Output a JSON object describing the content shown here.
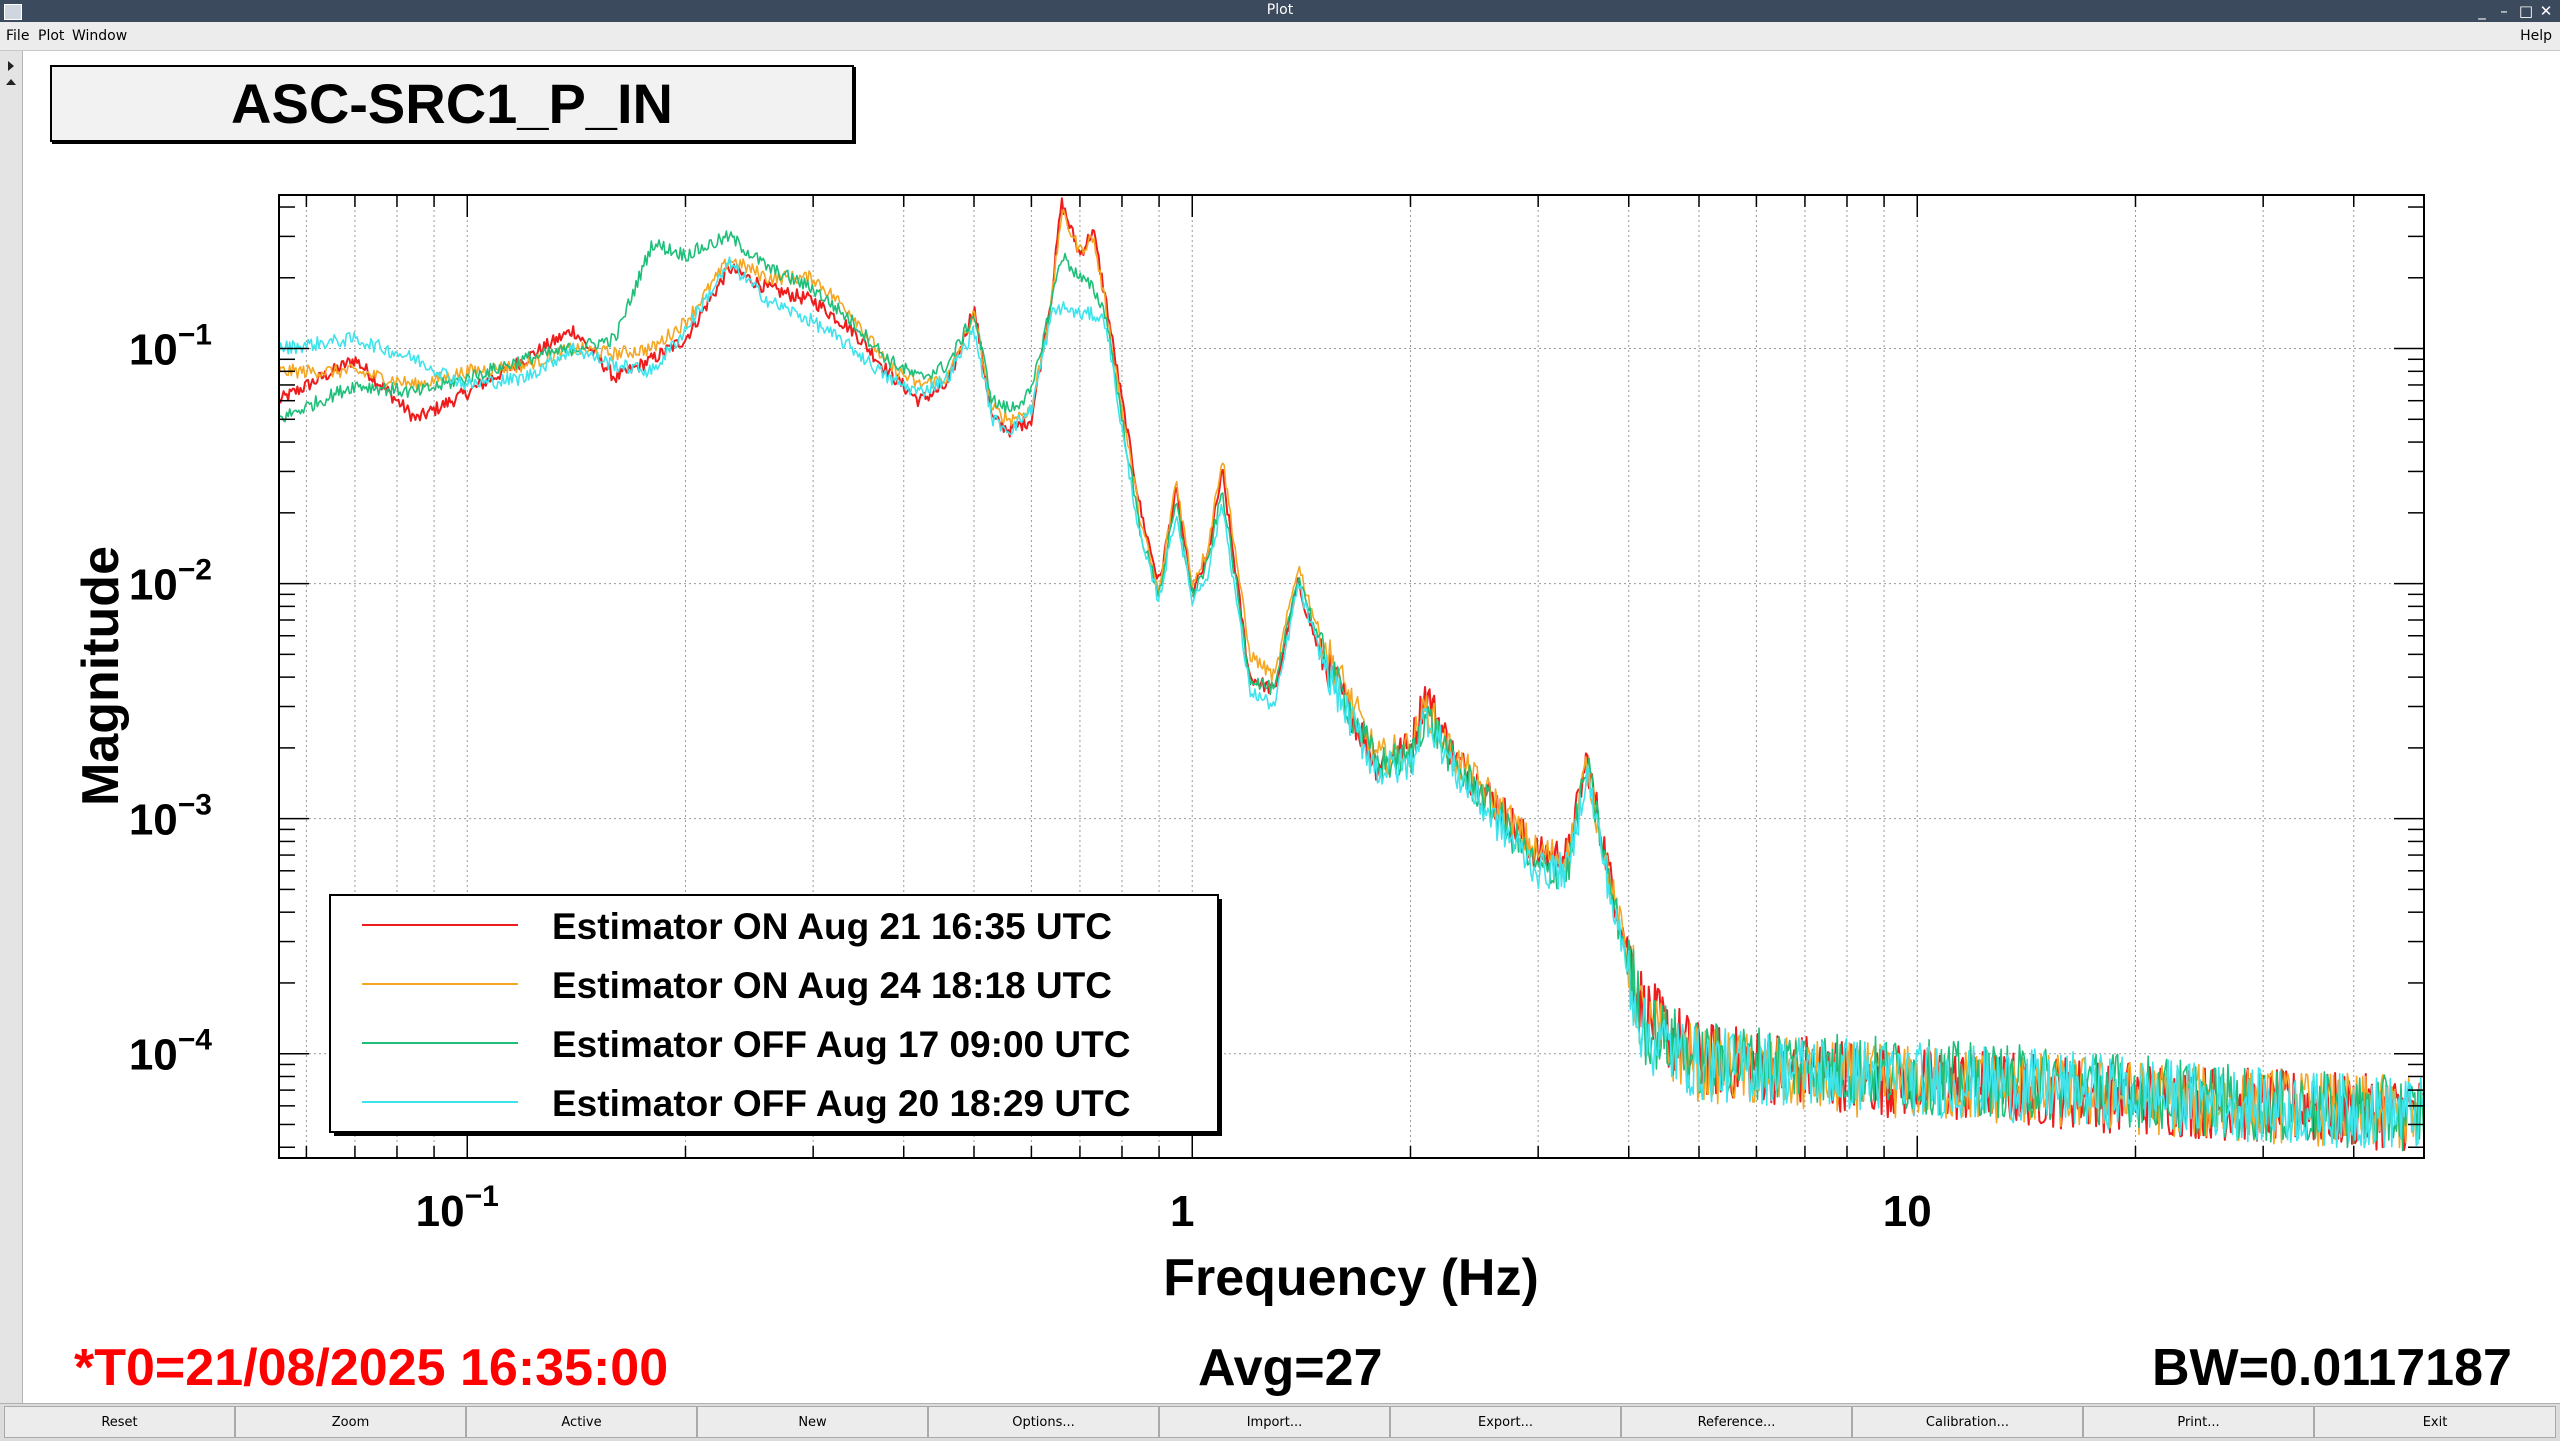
{
  "window": {
    "title": "Plot",
    "controls": [
      "_",
      "–",
      "□",
      "✕"
    ]
  },
  "menu": {
    "items": [
      "File",
      "Plot",
      "Window"
    ],
    "help": "Help"
  },
  "plot_title": "ASC-SRC1_P_IN",
  "footer": {
    "t0": "*T0=21/08/2025 16:35:00",
    "avg": "Avg=27",
    "bw": "BW=0.0117187"
  },
  "colors": {
    "t0": "#ff0000",
    "frame": "#000000",
    "grid": "#9a9a9a"
  },
  "buttons": [
    "Reset",
    "Zoom",
    "Active",
    "New",
    "Options...",
    "Import...",
    "Export...",
    "Reference...",
    "Calibration...",
    "Print...",
    "Exit"
  ],
  "chart_data": {
    "type": "line",
    "xlabel": "Frequency (Hz)",
    "ylabel": "Magnitude",
    "x_scale": "log",
    "y_scale": "log",
    "xlim": [
      0.055,
      50
    ],
    "ylim": [
      3.6e-05,
      0.45
    ],
    "x_tick_labels": [
      {
        "value": 0.1,
        "base": "10",
        "exp": "−1"
      },
      {
        "value": 1,
        "base": "1",
        "exp": ""
      },
      {
        "value": 10,
        "base": "10",
        "exp": ""
      }
    ],
    "y_tick_labels": [
      {
        "value": 0.1,
        "base": "10",
        "exp": "−1"
      },
      {
        "value": 0.01,
        "base": "10",
        "exp": "−2"
      },
      {
        "value": 0.001,
        "base": "10",
        "exp": "−3"
      },
      {
        "value": 0.0001,
        "base": "10",
        "exp": "−4"
      }
    ],
    "grid": true,
    "legend_position": "bottom-left",
    "x": [
      0.055,
      0.07,
      0.085,
      0.1,
      0.12,
      0.14,
      0.16,
      0.18,
      0.2,
      0.23,
      0.26,
      0.3,
      0.34,
      0.38,
      0.42,
      0.46,
      0.5,
      0.53,
      0.56,
      0.6,
      0.64,
      0.66,
      0.7,
      0.73,
      0.76,
      0.8,
      0.85,
      0.9,
      0.95,
      1.0,
      1.05,
      1.1,
      1.2,
      1.3,
      1.4,
      1.5,
      1.6,
      1.8,
      2.0,
      2.1,
      2.3,
      2.6,
      3.0,
      3.3,
      3.5,
      3.8,
      4.2,
      5,
      7,
      10,
      15,
      20,
      30,
      50
    ],
    "series": [
      {
        "name": "Estimator ON Aug 21 16:35 UTC",
        "color": "#ee1c1c",
        "values": [
          0.06,
          0.09,
          0.05,
          0.065,
          0.09,
          0.12,
          0.075,
          0.09,
          0.11,
          0.22,
          0.18,
          0.16,
          0.12,
          0.08,
          0.06,
          0.07,
          0.15,
          0.05,
          0.045,
          0.05,
          0.17,
          0.42,
          0.25,
          0.32,
          0.16,
          0.06,
          0.02,
          0.01,
          0.025,
          0.009,
          0.013,
          0.03,
          0.004,
          0.0035,
          0.01,
          0.005,
          0.0035,
          0.0017,
          0.002,
          0.0035,
          0.0018,
          0.0012,
          0.0007,
          0.0007,
          0.0018,
          0.0005,
          0.00015,
          9.5e-05,
          8.5e-05,
          7.5e-05,
          7e-05,
          6.5e-05,
          6e-05,
          5.5e-05
        ]
      },
      {
        "name": "Estimator ON Aug 24 18:18 UTC",
        "color": "#f5a623",
        "values": [
          0.08,
          0.08,
          0.07,
          0.08,
          0.085,
          0.1,
          0.095,
          0.1,
          0.13,
          0.24,
          0.2,
          0.2,
          0.14,
          0.085,
          0.07,
          0.075,
          0.14,
          0.055,
          0.05,
          0.055,
          0.16,
          0.38,
          0.26,
          0.3,
          0.15,
          0.055,
          0.018,
          0.009,
          0.028,
          0.01,
          0.014,
          0.035,
          0.005,
          0.004,
          0.012,
          0.006,
          0.004,
          0.0018,
          0.002,
          0.003,
          0.0018,
          0.0012,
          0.0007,
          0.0007,
          0.0017,
          0.00048,
          0.00013,
          9e-05,
          8e-05,
          7.5e-05,
          7e-05,
          6.5e-05,
          6e-05,
          5.5e-05
        ]
      },
      {
        "name": "Estimator OFF Aug 17 09:00 UTC",
        "color": "#1fbf7a",
        "values": [
          0.05,
          0.07,
          0.065,
          0.075,
          0.09,
          0.1,
          0.11,
          0.28,
          0.25,
          0.3,
          0.22,
          0.18,
          0.13,
          0.09,
          0.075,
          0.085,
          0.14,
          0.06,
          0.055,
          0.065,
          0.16,
          0.25,
          0.2,
          0.18,
          0.14,
          0.05,
          0.016,
          0.009,
          0.022,
          0.009,
          0.012,
          0.025,
          0.004,
          0.0035,
          0.011,
          0.0055,
          0.0035,
          0.0017,
          0.0018,
          0.0028,
          0.0017,
          0.0011,
          0.0006,
          0.0006,
          0.0017,
          0.00045,
          0.00013,
          9.5e-05,
          9e-05,
          8e-05,
          7.5e-05,
          7e-05,
          6e-05,
          5.5e-05
        ]
      },
      {
        "name": "Estimator OFF Aug 20 18:29 UTC",
        "color": "#3ee4ec",
        "values": [
          0.1,
          0.11,
          0.09,
          0.07,
          0.075,
          0.1,
          0.085,
          0.08,
          0.12,
          0.23,
          0.16,
          0.13,
          0.1,
          0.075,
          0.065,
          0.075,
          0.12,
          0.05,
          0.045,
          0.055,
          0.14,
          0.15,
          0.14,
          0.14,
          0.13,
          0.045,
          0.015,
          0.0085,
          0.02,
          0.0085,
          0.011,
          0.022,
          0.0035,
          0.003,
          0.01,
          0.005,
          0.0032,
          0.0016,
          0.0017,
          0.0028,
          0.0016,
          0.001,
          0.0006,
          0.0006,
          0.0016,
          0.00042,
          0.00012,
          9e-05,
          8.5e-05,
          7.8e-05,
          7.2e-05,
          6.8e-05,
          6e-05,
          5.5e-05
        ]
      }
    ]
  }
}
